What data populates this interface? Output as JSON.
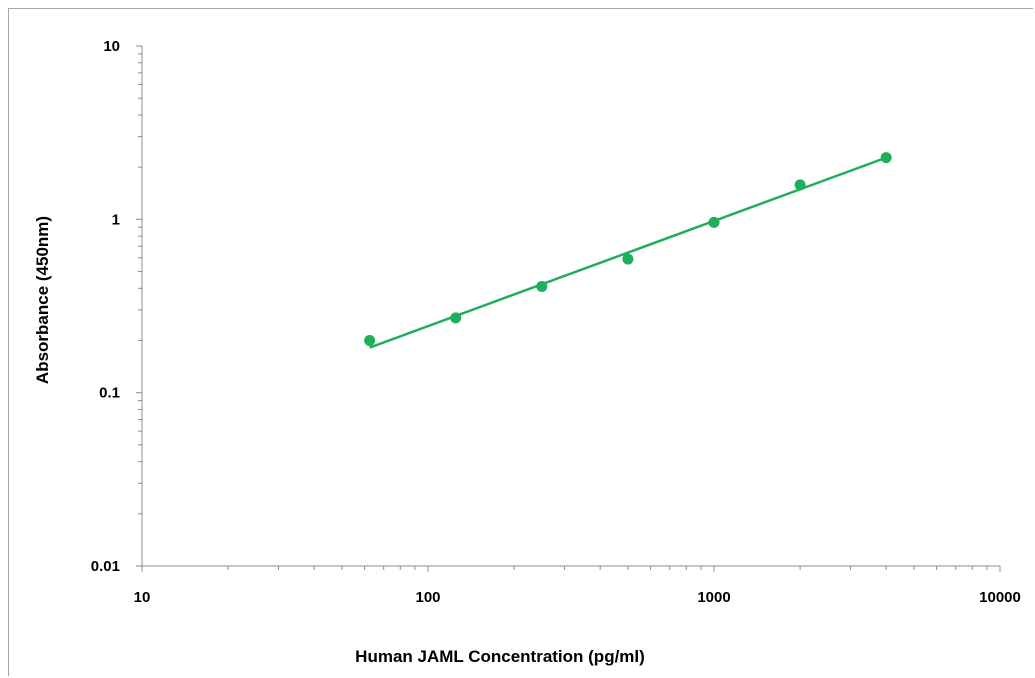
{
  "chart_data": {
    "type": "scatter",
    "title": "",
    "xlabel": "Human JAML Concentration (pg/ml)",
    "ylabel": "Absorbance (450nm)",
    "x_scale": "log",
    "y_scale": "log",
    "xlim": [
      10,
      10000
    ],
    "ylim": [
      0.01,
      10
    ],
    "x_ticks": [
      "10",
      "100",
      "1000",
      "10000"
    ],
    "y_ticks": [
      "0.01",
      "0.1",
      "1",
      "10"
    ],
    "grid": false,
    "legend": "none",
    "series": [
      {
        "type": "scatter",
        "x": [
          62.5,
          125,
          250,
          500,
          1000,
          2000,
          4000
        ],
        "y": [
          0.2,
          0.27,
          0.41,
          0.59,
          0.96,
          1.58,
          2.27
        ],
        "color": "#1fae5b"
      },
      {
        "type": "trendline",
        "x": [
          62.5,
          4000
        ],
        "y": [
          0.182,
          2.27
        ],
        "color": "#1fae5b"
      }
    ]
  }
}
